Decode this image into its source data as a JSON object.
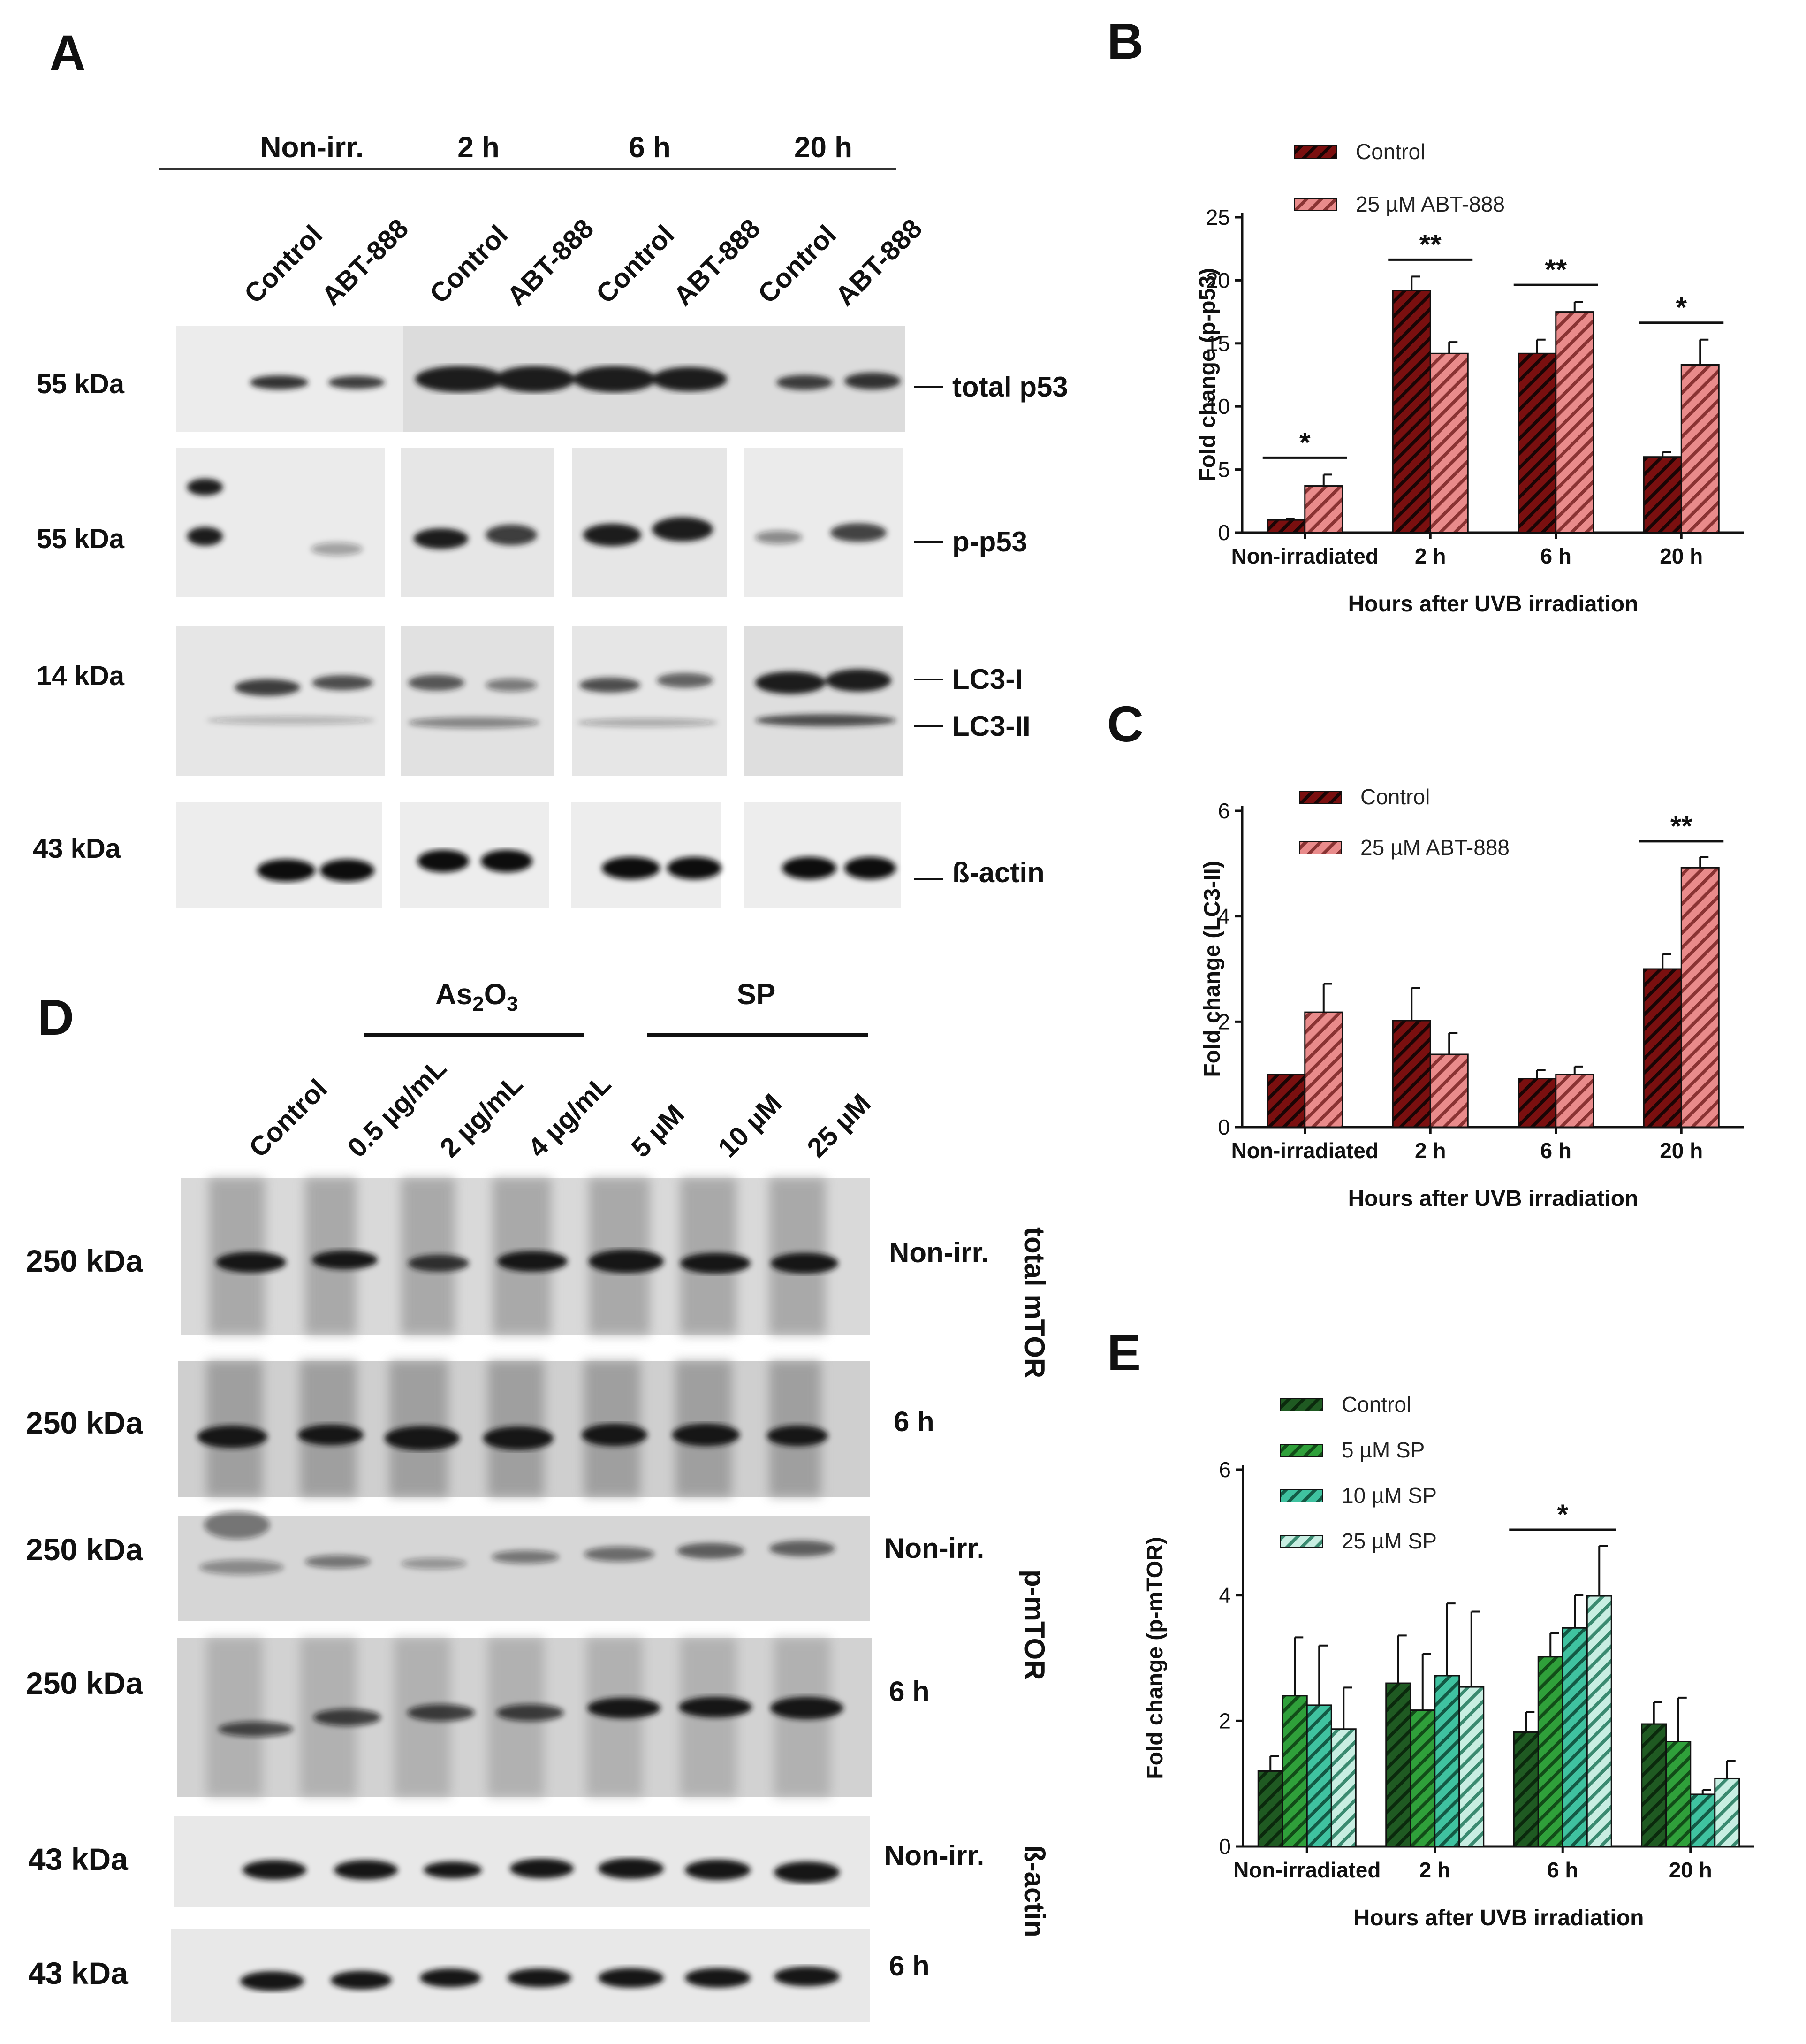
{
  "panels": {
    "a": "A",
    "b": "B",
    "c": "C",
    "d": "D",
    "e": "E"
  },
  "colors": {
    "dark_red": "#7a0f0f",
    "light_red": "#e98b8b",
    "g0": "#1f5a22",
    "g1": "#2fa03a",
    "g2": "#3fc2a0",
    "g3": "#b7e6d8",
    "blot_bg": "#e9e9e9",
    "band": "#1a1a1a"
  },
  "panel_a": {
    "time_headers": [
      "Non-irr.",
      "2 h",
      "6 h",
      "20 h"
    ],
    "lanes": [
      "Control",
      "ABT-888",
      "Control",
      "ABT-888",
      "Control",
      "ABT-888",
      "Control",
      "ABT-888"
    ],
    "blots": [
      {
        "kda": "55 kDa",
        "label": "total p53"
      },
      {
        "kda": "55 kDa",
        "label": "p-p53"
      },
      {
        "kda": "14 kDa",
        "label": "LC3-I",
        "label2": "LC3-II"
      },
      {
        "kda": "43 kDa",
        "label": "ß-actin"
      }
    ]
  },
  "panel_d": {
    "group_headers": {
      "as2o3_main": "As",
      "as2o3_sub1": "2",
      "as2o3_mid": "O",
      "as2o3_sub2": "3",
      "sp": "SP"
    },
    "lanes": [
      "Control",
      "0.5 µg/mL",
      "2 µg/mL",
      "4 µg/mL",
      "5 µM",
      "10 µM",
      "25 µM"
    ],
    "rows": [
      {
        "kda": "250 kDa",
        "cond": "Non-irr."
      },
      {
        "kda": "250 kDa",
        "cond": "6 h"
      },
      {
        "kda": "250 kDa",
        "cond": "Non-irr."
      },
      {
        "kda": "250 kDa",
        "cond": "6 h"
      },
      {
        "kda": "43 kDa",
        "cond": "Non-irr."
      },
      {
        "kda": "43 kDa",
        "cond": "6 h"
      }
    ],
    "side_labels": [
      "total mTOR",
      "p-mTOR",
      "ß-actin"
    ]
  },
  "chart_data": [
    {
      "panel": "B",
      "type": "bar",
      "categories": [
        "Non-irradiated",
        "2 h",
        "6 h",
        "20 h"
      ],
      "series": [
        {
          "name": "Control",
          "values": [
            1.0,
            19.2,
            14.2,
            6.0
          ],
          "errors": [
            0.1,
            1.1,
            1.1,
            0.4
          ]
        },
        {
          "name": "25 µM ABT-888",
          "values": [
            3.7,
            14.2,
            17.5,
            13.3
          ],
          "errors": [
            0.9,
            0.9,
            0.8,
            2.0
          ]
        }
      ],
      "significance": [
        "*",
        "**",
        "**",
        "*"
      ],
      "xlabel": "Hours after UVB irradiation",
      "ylabel": "Fold change (p-p53)",
      "ylim": [
        0,
        25
      ],
      "yticks": [
        0,
        5,
        10,
        15,
        20,
        25
      ]
    },
    {
      "panel": "C",
      "type": "bar",
      "categories": [
        "Non-irradiated",
        "2 h",
        "6 h",
        "20 h"
      ],
      "series": [
        {
          "name": "Control",
          "values": [
            1.0,
            2.02,
            0.92,
            3.0
          ],
          "errors": [
            0.0,
            0.62,
            0.16,
            0.28
          ]
        },
        {
          "name": "25 µM ABT-888",
          "values": [
            2.18,
            1.38,
            1.0,
            4.92
          ],
          "errors": [
            0.54,
            0.4,
            0.15,
            0.2
          ]
        }
      ],
      "significance": [
        "",
        "",
        "",
        "**"
      ],
      "xlabel": "Hours after UVB irradiation",
      "ylabel": "Fold  change (LC3-II)",
      "ylim": [
        0,
        6
      ],
      "yticks": [
        0,
        2,
        4,
        6
      ]
    },
    {
      "panel": "E",
      "type": "bar",
      "categories": [
        "Non-irradiated",
        "2 h",
        "6 h",
        "20 h"
      ],
      "series": [
        {
          "name": "Control",
          "values": [
            1.2,
            2.6,
            1.82,
            1.95
          ],
          "errors": [
            0.24,
            0.76,
            0.32,
            0.35
          ]
        },
        {
          "name": "5 µM SP",
          "values": [
            2.4,
            2.17,
            3.02,
            1.67
          ],
          "errors": [
            0.93,
            0.9,
            0.38,
            0.7
          ]
        },
        {
          "name": "10 µM SP",
          "values": [
            2.25,
            2.72,
            3.48,
            0.83
          ],
          "errors": [
            0.95,
            1.15,
            0.52,
            0.07
          ]
        },
        {
          "name": "25 µM SP",
          "values": [
            1.87,
            2.54,
            3.99,
            1.08
          ],
          "errors": [
            0.66,
            1.2,
            0.8,
            0.28
          ]
        }
      ],
      "significance": [
        "",
        "",
        "*",
        ""
      ],
      "xlabel": "Hours after UVB irradiation",
      "ylabel": "Fold change (p-mTOR)",
      "ylim": [
        0,
        6
      ],
      "yticks": [
        0,
        2,
        4,
        6
      ]
    }
  ]
}
